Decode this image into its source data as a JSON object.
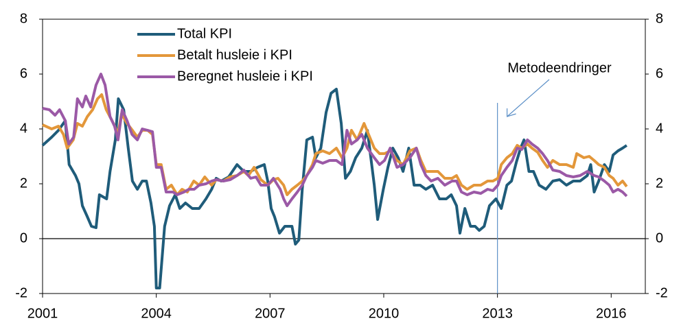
{
  "chart_data": {
    "type": "line",
    "xlim": [
      2001,
      2016.9
    ],
    "xticks": [
      2001,
      2004,
      2007,
      2010,
      2013,
      2016
    ],
    "ylim": [
      -2,
      8
    ],
    "yticks": [
      -2,
      0,
      2,
      4,
      6,
      8
    ],
    "y2lim": [
      -2,
      8
    ],
    "y2ticks": [
      -2,
      0,
      2,
      4,
      6,
      8
    ],
    "annotations": [
      {
        "text": "Metodeendringer",
        "x": 2013
      }
    ],
    "series": [
      {
        "name": "Total KPI",
        "color": "#1f5c7a",
        "x": [
          2001,
          2001.24,
          2001.42,
          2001.6,
          2001.7,
          2001.87,
          2001.96,
          2002.05,
          2002.18,
          2002.29,
          2002.41,
          2002.5,
          2002.69,
          2002.78,
          2002.92,
          2003.0,
          2003.14,
          2003.26,
          2003.37,
          2003.5,
          2003.63,
          2003.74,
          2003.86,
          2003.95,
          2004.0,
          2004.09,
          2004.22,
          2004.35,
          2004.5,
          2004.62,
          2004.77,
          2004.95,
          2005.13,
          2005.31,
          2005.46,
          2005.58,
          2005.71,
          2005.91,
          2006.13,
          2006.31,
          2006.49,
          2006.67,
          2006.85,
          2006.94,
          2007.03,
          2007.12,
          2007.25,
          2007.39,
          2007.58,
          2007.67,
          2007.76,
          2007.85,
          2007.97,
          2008.12,
          2008.21,
          2008.34,
          2008.48,
          2008.61,
          2008.75,
          2008.88,
          2008.99,
          2009.12,
          2009.26,
          2009.42,
          2009.57,
          2009.66,
          2009.75,
          2009.84,
          2009.99,
          2010.11,
          2010.24,
          2010.38,
          2010.51,
          2010.66,
          2010.8,
          2010.96,
          2011.11,
          2011.29,
          2011.47,
          2011.65,
          2011.78,
          2011.92,
          2012.01,
          2012.14,
          2012.29,
          2012.41,
          2012.52,
          2012.65,
          2012.79,
          2012.96,
          2013.1,
          2013.25,
          2013.37,
          2013.5,
          2013.61,
          2013.7,
          2013.83,
          2013.95,
          2014.1,
          2014.28,
          2014.46,
          2014.64,
          2014.82,
          2015.0,
          2015.18,
          2015.37,
          2015.46,
          2015.55,
          2015.67,
          2015.82,
          2015.95,
          2016.05,
          2016.18,
          2016.3,
          2016.41
        ],
        "values": [
          3.4,
          3.7,
          3.95,
          4.3,
          2.7,
          2.3,
          2.0,
          1.2,
          0.8,
          0.45,
          0.4,
          1.6,
          1.45,
          2.45,
          3.6,
          5.1,
          4.7,
          3.3,
          2.1,
          1.8,
          2.1,
          2.1,
          1.3,
          0.45,
          -1.8,
          -1.8,
          0.45,
          1.2,
          1.6,
          1.1,
          1.3,
          1.1,
          1.1,
          1.45,
          1.8,
          2.2,
          2.1,
          2.25,
          2.7,
          2.45,
          2.45,
          2.6,
          2.7,
          2.1,
          1.1,
          0.8,
          0.2,
          0.45,
          0.45,
          -0.2,
          -0.05,
          1.8,
          3.6,
          3.7,
          2.95,
          3.3,
          4.6,
          5.3,
          5.45,
          4.2,
          2.2,
          2.45,
          2.95,
          3.3,
          3.95,
          2.95,
          1.95,
          0.7,
          1.8,
          2.6,
          3.3,
          2.95,
          2.45,
          3.3,
          1.95,
          1.95,
          1.8,
          1.95,
          1.45,
          1.45,
          1.6,
          1.2,
          0.2,
          1.1,
          0.45,
          0.45,
          0.3,
          0.45,
          1.2,
          1.45,
          1.1,
          1.95,
          2.1,
          2.8,
          3.3,
          3.6,
          2.45,
          2.45,
          1.95,
          1.8,
          2.1,
          2.15,
          1.95,
          2.1,
          2.1,
          2.3,
          2.7,
          1.7,
          2.1,
          2.7,
          2.45,
          3.05,
          3.2,
          3.3,
          3.4
        ]
      },
      {
        "name": "Betalt husleie i KPI",
        "color": "#e3973a",
        "x": [
          2001,
          2001.24,
          2001.42,
          2001.55,
          2001.65,
          2001.81,
          2001.92,
          2002.05,
          2002.18,
          2002.32,
          2002.45,
          2002.56,
          2002.68,
          2002.87,
          2002.99,
          2003.08,
          2003.23,
          2003.37,
          2003.5,
          2003.63,
          2003.77,
          2003.9,
          2004.0,
          2004.13,
          2004.26,
          2004.4,
          2004.55,
          2004.68,
          2004.82,
          2004.99,
          2005.13,
          2005.28,
          2005.46,
          2005.58,
          2005.77,
          2005.95,
          2006.13,
          2006.31,
          2006.43,
          2006.58,
          2006.76,
          2006.94,
          2007.09,
          2007.21,
          2007.36,
          2007.45,
          2007.58,
          2007.72,
          2007.85,
          2007.97,
          2008.12,
          2008.21,
          2008.39,
          2008.57,
          2008.75,
          2008.9,
          2009.03,
          2009.15,
          2009.3,
          2009.48,
          2009.6,
          2009.75,
          2009.89,
          2010.02,
          2010.17,
          2010.35,
          2010.51,
          2010.69,
          2010.86,
          2010.98,
          2011.11,
          2011.25,
          2011.43,
          2011.61,
          2011.8,
          2011.92,
          2012.05,
          2012.2,
          2012.38,
          2012.56,
          2012.74,
          2012.88,
          2013.01,
          2013.1,
          2013.25,
          2013.39,
          2013.52,
          2013.64,
          2013.79,
          2013.91,
          2014.06,
          2014.19,
          2014.32,
          2014.46,
          2014.64,
          2014.82,
          2015.0,
          2015.09,
          2015.28,
          2015.42,
          2015.55,
          2015.67,
          2015.82,
          2015.95,
          2016.05,
          2016.18,
          2016.3,
          2016.41
        ],
        "values": [
          4.15,
          4.0,
          4.1,
          3.8,
          3.3,
          3.6,
          4.2,
          4.1,
          4.45,
          4.7,
          5.1,
          5.25,
          4.7,
          4.2,
          3.8,
          4.55,
          4.2,
          3.95,
          3.7,
          3.95,
          3.95,
          3.8,
          2.7,
          2.7,
          1.8,
          1.95,
          1.6,
          1.8,
          1.7,
          2.1,
          1.95,
          2.25,
          1.95,
          2.15,
          2.1,
          2.25,
          2.3,
          2.45,
          2.3,
          2.6,
          2.15,
          1.95,
          2.15,
          2.2,
          1.95,
          1.6,
          1.8,
          1.95,
          2.1,
          2.3,
          2.7,
          3.1,
          3.2,
          3.1,
          3.3,
          2.95,
          3.3,
          3.95,
          3.6,
          4.2,
          3.8,
          3.3,
          3.1,
          3.1,
          3.2,
          2.85,
          2.7,
          3.2,
          3.3,
          2.85,
          2.45,
          2.45,
          2.45,
          2.2,
          2.2,
          2.3,
          1.95,
          1.8,
          1.95,
          1.95,
          2.1,
          2.1,
          2.2,
          2.7,
          2.95,
          3.1,
          3.4,
          3.3,
          3.45,
          3.3,
          3.15,
          2.85,
          2.6,
          2.85,
          2.7,
          2.7,
          2.6,
          3.1,
          2.95,
          3.0,
          2.85,
          2.7,
          2.6,
          2.3,
          2.2,
          1.95,
          2.1,
          1.9
        ]
      },
      {
        "name": "Beregnet husleie i KPI",
        "color": "#9b59a6",
        "x": [
          2001,
          2001.18,
          2001.33,
          2001.45,
          2001.6,
          2001.69,
          2001.82,
          2001.92,
          2002.05,
          2002.14,
          2002.27,
          2002.41,
          2002.54,
          2002.65,
          2002.78,
          2002.9,
          2002.99,
          2003.1,
          2003.23,
          2003.36,
          2003.5,
          2003.63,
          2003.77,
          2003.9,
          2004.0,
          2004.13,
          2004.26,
          2004.44,
          2004.55,
          2004.73,
          2004.86,
          2005.0,
          2005.13,
          2005.31,
          2005.46,
          2005.58,
          2005.77,
          2005.95,
          2006.13,
          2006.31,
          2006.49,
          2006.63,
          2006.76,
          2006.94,
          2007.09,
          2007.27,
          2007.36,
          2007.45,
          2007.58,
          2007.72,
          2007.85,
          2007.97,
          2008.12,
          2008.21,
          2008.39,
          2008.57,
          2008.75,
          2008.9,
          2009.03,
          2009.15,
          2009.3,
          2009.42,
          2009.57,
          2009.75,
          2009.89,
          2010.02,
          2010.17,
          2010.35,
          2010.51,
          2010.69,
          2010.86,
          2010.98,
          2011.11,
          2011.25,
          2011.43,
          2011.61,
          2011.8,
          2011.92,
          2012.05,
          2012.2,
          2012.38,
          2012.56,
          2012.74,
          2012.88,
          2013.01,
          2013.1,
          2013.25,
          2013.39,
          2013.52,
          2013.64,
          2013.79,
          2013.91,
          2014.06,
          2014.19,
          2014.32,
          2014.46,
          2014.64,
          2014.82,
          2015.0,
          2015.18,
          2015.37,
          2015.55,
          2015.67,
          2015.82,
          2015.95,
          2016.05,
          2016.18,
          2016.3,
          2016.41
        ],
        "values": [
          4.75,
          4.7,
          4.5,
          4.7,
          4.3,
          3.45,
          3.7,
          5.1,
          4.8,
          5.2,
          4.8,
          5.6,
          6.0,
          5.6,
          4.45,
          4.1,
          3.6,
          4.7,
          4.3,
          3.8,
          3.6,
          4.0,
          3.95,
          3.9,
          2.6,
          2.6,
          1.7,
          1.7,
          1.6,
          1.7,
          1.8,
          1.8,
          1.95,
          2.0,
          2.1,
          2.15,
          2.1,
          2.15,
          2.3,
          2.5,
          2.2,
          2.25,
          1.95,
          1.95,
          2.2,
          1.8,
          1.45,
          1.2,
          1.45,
          1.7,
          1.95,
          2.3,
          2.6,
          2.85,
          2.75,
          2.85,
          2.85,
          2.7,
          3.95,
          3.45,
          3.6,
          3.8,
          3.3,
          2.95,
          2.7,
          2.85,
          3.3,
          2.6,
          2.7,
          2.95,
          3.3,
          2.7,
          2.3,
          2.1,
          2.2,
          1.95,
          2.1,
          2.1,
          1.7,
          1.6,
          1.7,
          1.65,
          1.8,
          1.75,
          1.95,
          2.3,
          2.6,
          2.85,
          3.3,
          3.25,
          3.6,
          3.45,
          3.3,
          3.1,
          2.85,
          2.5,
          2.45,
          2.3,
          2.25,
          2.3,
          2.45,
          2.3,
          2.25,
          2.1,
          1.95,
          1.7,
          1.8,
          1.7,
          1.55
        ]
      }
    ]
  }
}
